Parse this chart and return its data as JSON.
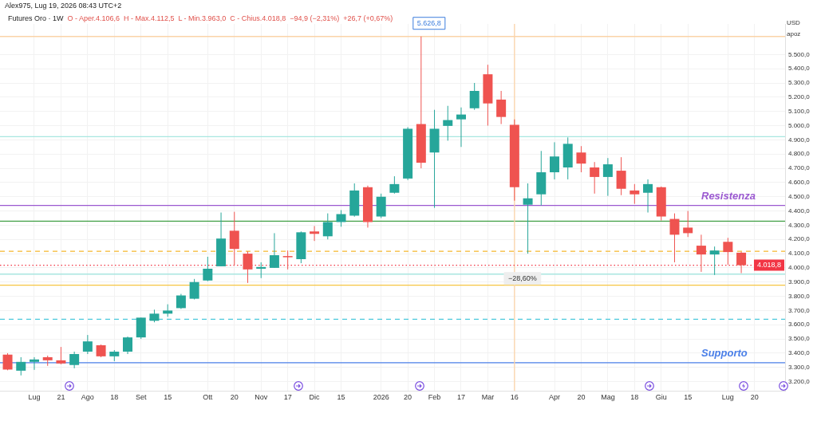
{
  "chart_data": {
    "type": "candlestick",
    "title": "Futures Oro · 1W",
    "subtitle": "O - Aper.4.106,6  H - Max.4.112,5  L - Min.3.963,0  C - Chius.4.018,8  −94,9 (−2,31%)  +26,7 (+0,67%)",
    "ylabel": "USD apoz",
    "x": [
      "2025-06-23",
      "2025-06-30",
      "2025-07-07",
      "2025-07-14",
      "2025-07-21",
      "2025-07-28",
      "2025-08-04",
      "2025-08-11",
      "2025-08-18",
      "2025-08-25",
      "2025-09-01",
      "2025-09-08",
      "2025-09-15",
      "2025-09-22",
      "2025-09-29",
      "2025-10-06",
      "2025-10-13",
      "2025-10-20",
      "2025-10-27",
      "2025-11-03",
      "2025-11-10",
      "2025-11-17",
      "2025-11-24",
      "2025-12-01",
      "2025-12-08",
      "2025-12-15",
      "2025-12-22",
      "2025-12-29",
      "2026-01-05",
      "2026-01-12",
      "2026-01-19",
      "2026-01-26",
      "2026-02-02",
      "2026-02-09",
      "2026-02-16",
      "2026-02-23",
      "2026-03-02",
      "2026-03-09",
      "2026-03-16",
      "2026-03-23",
      "2026-03-30",
      "2026-04-06",
      "2026-04-13",
      "2026-04-20",
      "2026-04-27",
      "2026-05-04",
      "2026-05-11",
      "2026-05-18",
      "2026-05-25",
      "2026-06-01",
      "2026-06-08",
      "2026-06-15",
      "2026-06-22",
      "2026-06-29",
      "2026-07-06",
      "2026-07-13"
    ],
    "ohlc": [
      [
        3390,
        3400,
        3280,
        3285
      ],
      [
        3277,
        3372,
        3244,
        3339
      ],
      [
        3339,
        3372,
        3283,
        3356
      ],
      [
        3372,
        3383,
        3311,
        3350
      ],
      [
        3350,
        3444,
        3322,
        3328
      ],
      [
        3317,
        3411,
        3294,
        3394
      ],
      [
        3411,
        3528,
        3394,
        3483
      ],
      [
        3456,
        3461,
        3372,
        3378
      ],
      [
        3378,
        3422,
        3344,
        3411
      ],
      [
        3411,
        3517,
        3394,
        3511
      ],
      [
        3511,
        3650,
        3500,
        3650
      ],
      [
        3628,
        3706,
        3617,
        3678
      ],
      [
        3678,
        3744,
        3656,
        3700
      ],
      [
        3717,
        3817,
        3711,
        3806
      ],
      [
        3783,
        3922,
        3778,
        3900
      ],
      [
        3911,
        4078,
        3906,
        3994
      ],
      [
        4011,
        4389,
        4011,
        4206
      ],
      [
        4261,
        4394,
        4017,
        4133
      ],
      [
        4100,
        4117,
        3894,
        3989
      ],
      [
        3994,
        4039,
        3928,
        4006
      ],
      [
        4000,
        4244,
        4000,
        4089
      ],
      [
        4083,
        4122,
        3989,
        4078
      ],
      [
        4061,
        4256,
        4033,
        4250
      ],
      [
        4256,
        4294,
        4189,
        4239
      ],
      [
        4222,
        4383,
        4200,
        4322
      ],
      [
        4322,
        4406,
        4289,
        4378
      ],
      [
        4367,
        4594,
        4360,
        4544
      ],
      [
        4567,
        4578,
        4283,
        4322
      ],
      [
        4361,
        4522,
        4350,
        4500
      ],
      [
        4528,
        4644,
        4522,
        4589
      ],
      [
        4628,
        4989,
        4617,
        4978
      ],
      [
        5011,
        5626.8,
        4700,
        4739
      ],
      [
        4811,
        5111,
        4422,
        4978
      ],
      [
        4998,
        5139,
        4894,
        5039
      ],
      [
        5044,
        5128,
        4850,
        5078
      ],
      [
        5122,
        5300,
        5111,
        5244
      ],
      [
        5361,
        5428,
        5000,
        5156
      ],
      [
        5183,
        5244,
        5011,
        5061
      ],
      [
        5006,
        5044,
        4472,
        4567
      ],
      [
        4444,
        4594,
        4100,
        4489
      ],
      [
        4517,
        4822,
        4439,
        4672
      ],
      [
        4672,
        4883,
        4622,
        4783
      ],
      [
        4706,
        4917,
        4622,
        4872
      ],
      [
        4811,
        4856,
        4672,
        4733
      ],
      [
        4706,
        4744,
        4522,
        4639
      ],
      [
        4639,
        4772,
        4506,
        4728
      ],
      [
        4683,
        4778,
        4511,
        4556
      ],
      [
        4544,
        4589,
        4450,
        4517
      ],
      [
        4528,
        4622,
        4389,
        4589
      ],
      [
        4567,
        4572,
        4333,
        4361
      ],
      [
        4344,
        4383,
        4039,
        4233
      ],
      [
        4283,
        4400,
        4217,
        4244
      ],
      [
        4156,
        4233,
        3972,
        4094
      ],
      [
        4094,
        4150,
        3950,
        4122
      ],
      [
        4183,
        4211,
        4022,
        4111
      ],
      [
        4106.6,
        4112.5,
        3963.0,
        4018.8
      ]
    ],
    "colors": [
      "#ef5350",
      "#26a69a",
      "#26a69a",
      "#ef5350",
      "#ef5350",
      "#26a69a",
      "#26a69a",
      "#ef5350",
      "#26a69a",
      "#26a69a",
      "#26a69a",
      "#26a69a",
      "#26a69a",
      "#26a69a",
      "#26a69a",
      "#26a69a",
      "#26a69a",
      "#ef5350",
      "#ef5350",
      "#26a69a",
      "#26a69a",
      "#ef5350",
      "#26a69a",
      "#ef5350",
      "#26a69a",
      "#26a69a",
      "#26a69a",
      "#ef5350",
      "#26a69a",
      "#26a69a",
      "#26a69a",
      "#ef5350",
      "#26a69a",
      "#26a69a",
      "#26a69a",
      "#26a69a",
      "#ef5350",
      "#ef5350",
      "#ef5350",
      "#26a69a",
      "#26a69a",
      "#26a69a",
      "#26a69a",
      "#ef5350",
      "#ef5350",
      "#26a69a",
      "#ef5350",
      "#ef5350",
      "#26a69a",
      "#ef5350",
      "#ef5350",
      "#ef5350",
      "#ef5350",
      "#26a69a",
      "#ef5350",
      "#ef5350"
    ],
    "xlim": [
      "2025-06-19",
      "2026-08-05"
    ],
    "xticks": [
      {
        "value": "2025-07-07",
        "label": "Lug"
      },
      {
        "value": "2025-07-21",
        "label": "21"
      },
      {
        "value": "2025-08-04",
        "label": "Ago"
      },
      {
        "value": "2025-08-18",
        "label": "18"
      },
      {
        "value": "2025-09-01",
        "label": "Set"
      },
      {
        "value": "2025-09-15",
        "label": "15"
      },
      {
        "value": "2025-10-06",
        "label": "Ott"
      },
      {
        "value": "2025-10-20",
        "label": "20"
      },
      {
        "value": "2025-11-03",
        "label": "Nov"
      },
      {
        "value": "2025-11-17",
        "label": "17"
      },
      {
        "value": "2025-12-01",
        "label": "Dic"
      },
      {
        "value": "2025-12-15",
        "label": "15"
      },
      {
        "value": "2026-01-05",
        "label": "2026"
      },
      {
        "value": "2026-01-19",
        "label": "20"
      },
      {
        "value": "2026-02-02",
        "label": "Feb"
      },
      {
        "value": "2026-02-16",
        "label": "17"
      },
      {
        "value": "2026-03-02",
        "label": "Mar"
      },
      {
        "value": "2026-03-16",
        "label": "16"
      },
      {
        "value": "2026-04-06",
        "label": "Apr"
      },
      {
        "value": "2026-04-20",
        "label": "20"
      },
      {
        "value": "2026-05-04",
        "label": "Mag"
      },
      {
        "value": "2026-05-18",
        "label": "18"
      },
      {
        "value": "2026-06-01",
        "label": "Giu"
      },
      {
        "value": "2026-06-15",
        "label": "15"
      },
      {
        "value": "2026-07-06",
        "label": "Lug"
      },
      {
        "value": "2026-07-20",
        "label": "20"
      }
    ],
    "ylim": [
      3135,
      5715
    ],
    "yticks": [
      {
        "value": 3200,
        "label": "3.200,0"
      },
      {
        "value": 3300,
        "label": "3.300,0"
      },
      {
        "value": 3400,
        "label": "3.400,0"
      },
      {
        "value": 3500,
        "label": "3.500,0"
      },
      {
        "value": 3600,
        "label": "3.600,0"
      },
      {
        "value": 3700,
        "label": "3.700,0"
      },
      {
        "value": 3800,
        "label": "3.800,0"
      },
      {
        "value": 3900,
        "label": "3.900,0"
      },
      {
        "value": 4000,
        "label": "4.000,0"
      },
      {
        "value": 4100,
        "label": "4.100,0"
      },
      {
        "value": 4200,
        "label": "4.200,0"
      },
      {
        "value": 4300,
        "label": "4.300,0"
      },
      {
        "value": 4400,
        "label": "4.400,0"
      },
      {
        "value": 4500,
        "label": "4.500,0"
      },
      {
        "value": 4600,
        "label": "4.600,0"
      },
      {
        "value": 4700,
        "label": "4.700,0"
      },
      {
        "value": 4800,
        "label": "4.800,0"
      },
      {
        "value": 4900,
        "label": "4.900,0"
      },
      {
        "value": 5000,
        "label": "5.000,0"
      },
      {
        "value": 5100,
        "label": "5.100,0"
      },
      {
        "value": 5200,
        "label": "5.200,0"
      },
      {
        "value": 5300,
        "label": "5.300,0"
      },
      {
        "value": 5400,
        "label": "5.400,0"
      },
      {
        "value": 5500,
        "label": "5.500,0"
      }
    ],
    "grid": true,
    "ref_lines": [
      {
        "axis": "y",
        "value": 4117,
        "color": "#f5b82e",
        "line_style": "dashed"
      },
      {
        "axis": "y",
        "value": 3878,
        "color": "#f5c542",
        "line_style": "solid"
      },
      {
        "axis": "y",
        "value": 3639,
        "color": "#4dc9dc",
        "line_style": "dashed"
      },
      {
        "axis": "y",
        "value": 3333,
        "label": "Supporto",
        "color": "#4a7fe8",
        "line_style": "solid"
      },
      {
        "axis": "y",
        "value": 4439,
        "label": "Resistenza",
        "color": "#9b59d0",
        "line_style": "solid"
      },
      {
        "axis": "y",
        "value": 4328,
        "color": "#43a047",
        "line_style": "solid"
      },
      {
        "axis": "y",
        "value": 4922,
        "color": "#a8e6e0",
        "line_style": "solid"
      },
      {
        "axis": "y",
        "value": 3956,
        "color": "#a8e6e0",
        "line_style": "solid"
      },
      {
        "axis": "y",
        "value": 5626.8,
        "color": "#fbd3a8",
        "line_style": "solid"
      },
      {
        "axis": "x",
        "value": "2026-03-16",
        "color": "#fbd3a8",
        "line_style": "solid"
      },
      {
        "axis": "y",
        "value": 4018.8,
        "label": "4.018,8",
        "color": "#f23645",
        "line_style": "dotted"
      }
    ],
    "annotations": [
      "Alex975, Lug 19, 2026 08:43 UTC+2",
      {
        "text": "5.626,8",
        "x": "2026-01-26",
        "y": 5626.8
      },
      {
        "text": "−28,60%",
        "x": "2026-03-16",
        "y": 3990
      }
    ]
  }
}
